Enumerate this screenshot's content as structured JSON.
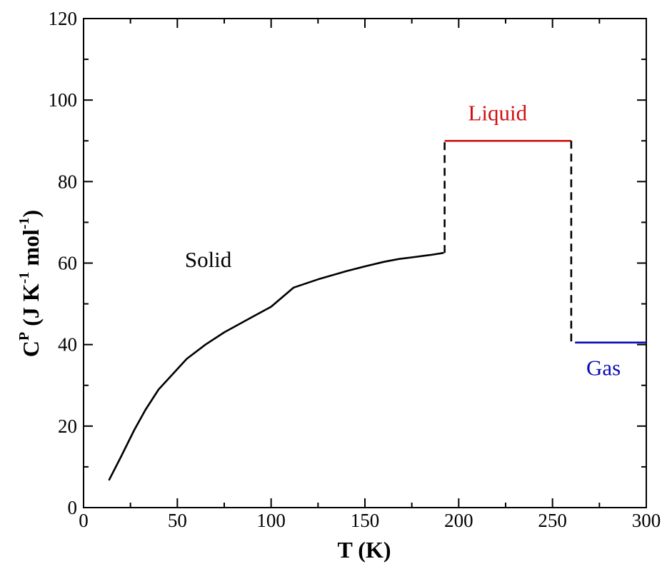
{
  "chart_data": {
    "type": "line",
    "xlabel": "T (K)",
    "ylabel": {
      "base": "C",
      "sup": "P",
      "units": [
        {
          "t": " (J K",
          "sup": false
        },
        {
          "t": "-1",
          "sup": true
        },
        {
          "t": " mol",
          "sup": false
        },
        {
          "t": "-1",
          "sup": true
        },
        {
          "t": ")",
          "sup": false
        }
      ]
    },
    "xlim": [
      0,
      300
    ],
    "ylim": [
      0,
      120
    ],
    "xticks": [
      0,
      50,
      100,
      150,
      200,
      250,
      300
    ],
    "yticks": [
      0,
      20,
      40,
      60,
      80,
      100,
      120
    ],
    "xtick_labels": [
      "0",
      "50",
      "100",
      "150",
      "200",
      "250",
      "300"
    ],
    "ytick_labels": [
      "0",
      "20",
      "40",
      "60",
      "80",
      "100",
      "120"
    ],
    "grid": false,
    "series": [
      {
        "id": "solid",
        "color": "#000000",
        "style": "solid",
        "x": [
          13.5,
          20,
          27,
          33,
          40,
          47,
          55,
          65,
          75,
          90,
          100,
          112,
          125,
          140,
          150,
          160,
          168,
          175,
          185,
          192
        ],
        "y": [
          6.7,
          12.5,
          19,
          24,
          29,
          32.5,
          36.5,
          40,
          43,
          46.8,
          49.3,
          54,
          56,
          58,
          59.2,
          60.3,
          61,
          61.4,
          62,
          62.5
        ]
      },
      {
        "id": "melting-transition",
        "color": "#000000",
        "style": "dashed",
        "x": [
          192.5,
          192.5
        ],
        "y": [
          62.5,
          90
        ]
      },
      {
        "id": "liquid",
        "color": "#d01010",
        "style": "solid",
        "x": [
          192.5,
          260
        ],
        "y": [
          90,
          90
        ]
      },
      {
        "id": "boiling-transition",
        "color": "#000000",
        "style": "dashed",
        "x": [
          260,
          260
        ],
        "y": [
          90,
          40.5
        ]
      },
      {
        "id": "gas",
        "color": "#0a0ab8",
        "style": "solid",
        "x": [
          262,
          300
        ],
        "y": [
          40.5,
          40.5
        ]
      }
    ],
    "annotations": [
      {
        "id": "solid",
        "text": "Solid",
        "x": 54,
        "y": 59,
        "color": "#000000"
      },
      {
        "id": "liquid",
        "text": "Liquid",
        "x": 205,
        "y": 95,
        "color": "#d01010"
      },
      {
        "id": "gas",
        "text": "Gas",
        "x": 268,
        "y": 32.5,
        "color": "#0a0ab8"
      }
    ]
  }
}
